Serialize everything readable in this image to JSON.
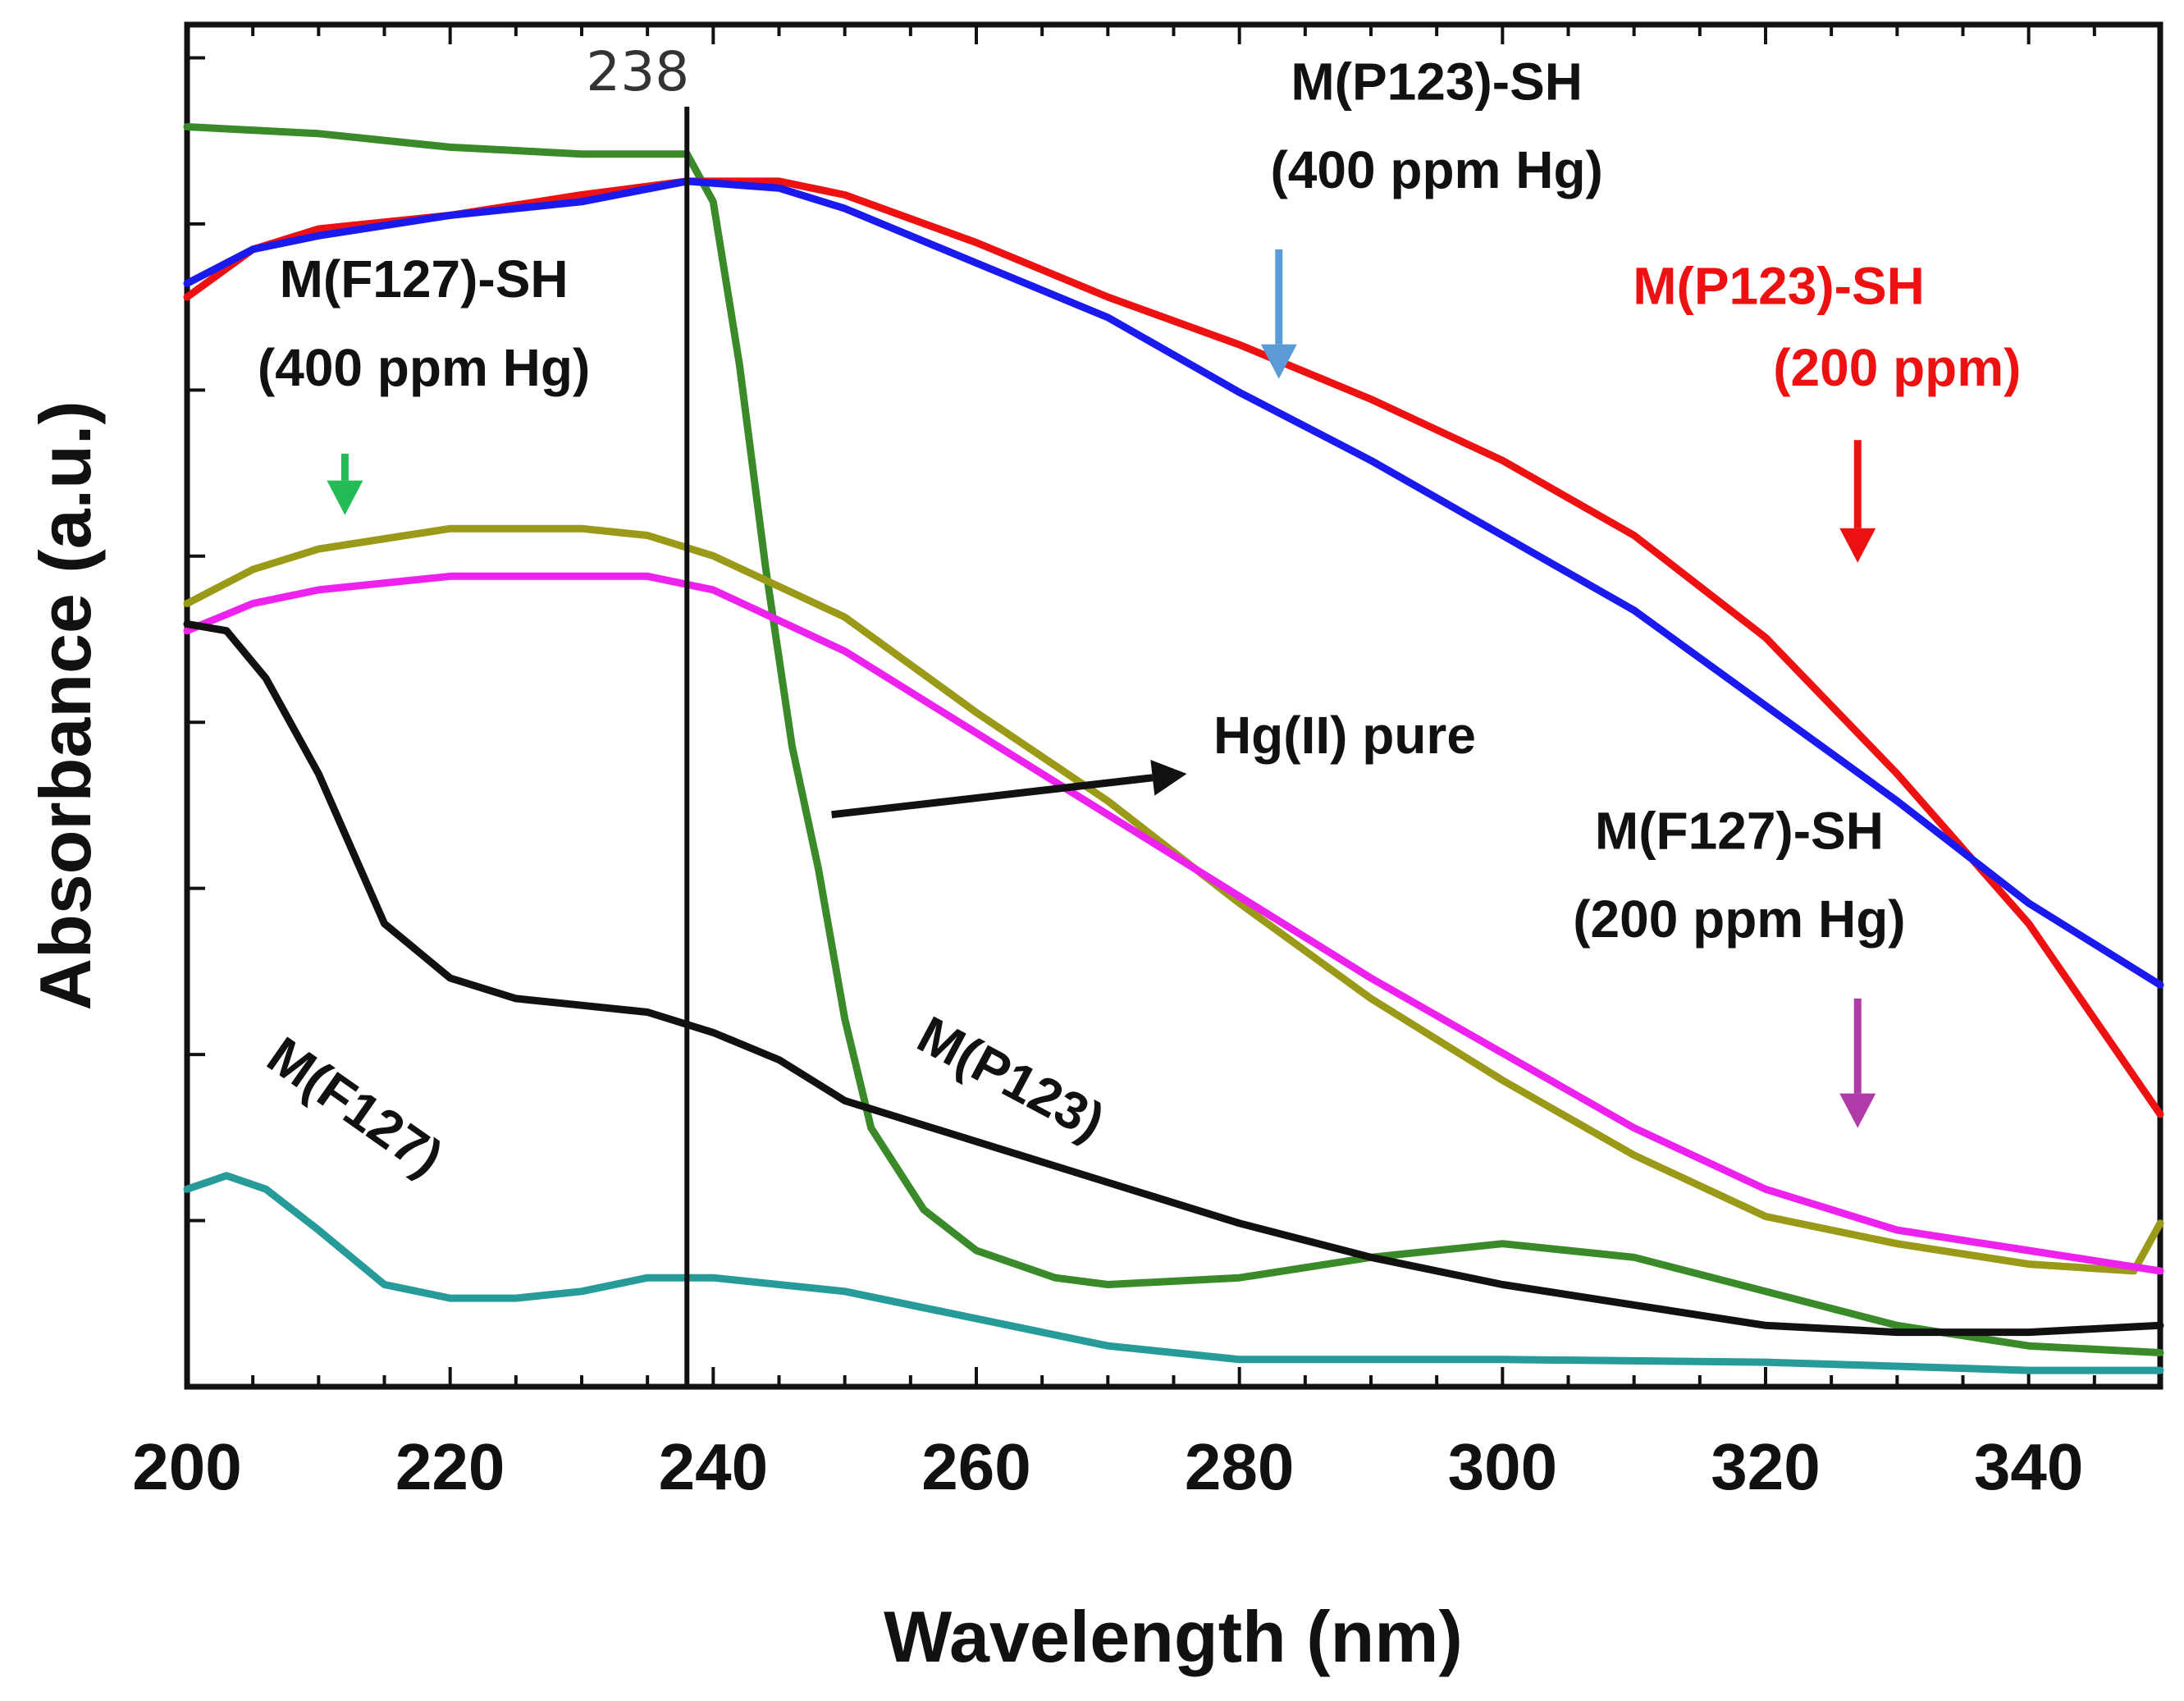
{
  "chart_data": {
    "type": "line",
    "xlabel": "Wavelength (nm)",
    "ylabel": "Absorbance (a.u.)",
    "xlim": [
      200,
      350
    ],
    "ylim": [
      0,
      1
    ],
    "xticks": [
      200,
      220,
      240,
      260,
      280,
      300,
      320,
      340
    ],
    "grid": false,
    "legend": "none",
    "peak_marker": {
      "x": 238,
      "label": "238"
    },
    "series": [
      {
        "color": "#3a8a2a",
        "points": [
          [
            200,
            0.925
          ],
          [
            210,
            0.92
          ],
          [
            220,
            0.91
          ],
          [
            230,
            0.905
          ],
          [
            238,
            0.905
          ],
          [
            240,
            0.87
          ],
          [
            242,
            0.75
          ],
          [
            244,
            0.6
          ],
          [
            246,
            0.47
          ],
          [
            248,
            0.38
          ],
          [
            250,
            0.27
          ],
          [
            252,
            0.19
          ],
          [
            256,
            0.13
          ],
          [
            260,
            0.1
          ],
          [
            266,
            0.08
          ],
          [
            270,
            0.075
          ],
          [
            280,
            0.08
          ],
          [
            290,
            0.095
          ],
          [
            300,
            0.105
          ],
          [
            310,
            0.095
          ],
          [
            320,
            0.07
          ],
          [
            330,
            0.045
          ],
          [
            340,
            0.03
          ],
          [
            350,
            0.025
          ]
        ]
      },
      {
        "color": "#ee1111",
        "points": [
          [
            200,
            0.8
          ],
          [
            205,
            0.835
          ],
          [
            210,
            0.85
          ],
          [
            220,
            0.86
          ],
          [
            230,
            0.875
          ],
          [
            238,
            0.885
          ],
          [
            245,
            0.885
          ],
          [
            250,
            0.875
          ],
          [
            260,
            0.84
          ],
          [
            270,
            0.8
          ],
          [
            280,
            0.765
          ],
          [
            290,
            0.725
          ],
          [
            300,
            0.68
          ],
          [
            310,
            0.625
          ],
          [
            320,
            0.55
          ],
          [
            330,
            0.45
          ],
          [
            340,
            0.34
          ],
          [
            350,
            0.2
          ]
        ]
      },
      {
        "color": "#1a1aee",
        "points": [
          [
            200,
            0.81
          ],
          [
            205,
            0.835
          ],
          [
            210,
            0.845
          ],
          [
            220,
            0.86
          ],
          [
            230,
            0.87
          ],
          [
            238,
            0.885
          ],
          [
            245,
            0.88
          ],
          [
            250,
            0.865
          ],
          [
            260,
            0.825
          ],
          [
            270,
            0.785
          ],
          [
            280,
            0.73
          ],
          [
            290,
            0.68
          ],
          [
            300,
            0.625
          ],
          [
            310,
            0.57
          ],
          [
            320,
            0.5
          ],
          [
            330,
            0.43
          ],
          [
            340,
            0.355
          ],
          [
            350,
            0.295
          ]
        ]
      },
      {
        "color": "#9a9a18",
        "points": [
          [
            200,
            0.575
          ],
          [
            205,
            0.6
          ],
          [
            210,
            0.615
          ],
          [
            220,
            0.63
          ],
          [
            230,
            0.63
          ],
          [
            235,
            0.625
          ],
          [
            240,
            0.61
          ],
          [
            250,
            0.565
          ],
          [
            260,
            0.495
          ],
          [
            270,
            0.43
          ],
          [
            280,
            0.355
          ],
          [
            290,
            0.285
          ],
          [
            300,
            0.225
          ],
          [
            310,
            0.17
          ],
          [
            320,
            0.125
          ],
          [
            330,
            0.105
          ],
          [
            340,
            0.09
          ],
          [
            348,
            0.085
          ],
          [
            350,
            0.12
          ]
        ]
      },
      {
        "color": "#ee22ee",
        "points": [
          [
            200,
            0.555
          ],
          [
            205,
            0.575
          ],
          [
            210,
            0.585
          ],
          [
            220,
            0.595
          ],
          [
            230,
            0.595
          ],
          [
            235,
            0.595
          ],
          [
            240,
            0.585
          ],
          [
            250,
            0.54
          ],
          [
            260,
            0.48
          ],
          [
            270,
            0.42
          ],
          [
            280,
            0.36
          ],
          [
            290,
            0.3
          ],
          [
            300,
            0.245
          ],
          [
            310,
            0.19
          ],
          [
            320,
            0.145
          ],
          [
            330,
            0.115
          ],
          [
            340,
            0.1
          ],
          [
            350,
            0.085
          ]
        ]
      },
      {
        "color": "#111111",
        "points": [
          [
            200,
            0.56
          ],
          [
            203,
            0.555
          ],
          [
            206,
            0.52
          ],
          [
            210,
            0.45
          ],
          [
            215,
            0.34
          ],
          [
            220,
            0.3
          ],
          [
            225,
            0.285
          ],
          [
            230,
            0.28
          ],
          [
            235,
            0.275
          ],
          [
            240,
            0.26
          ],
          [
            245,
            0.24
          ],
          [
            250,
            0.21
          ],
          [
            260,
            0.18
          ],
          [
            270,
            0.15
          ],
          [
            280,
            0.12
          ],
          [
            290,
            0.095
          ],
          [
            300,
            0.075
          ],
          [
            310,
            0.06
          ],
          [
            320,
            0.045
          ],
          [
            330,
            0.04
          ],
          [
            340,
            0.04
          ],
          [
            350,
            0.045
          ]
        ]
      },
      {
        "color": "#279a9a",
        "points": [
          [
            200,
            0.145
          ],
          [
            203,
            0.155
          ],
          [
            206,
            0.145
          ],
          [
            210,
            0.115
          ],
          [
            215,
            0.075
          ],
          [
            220,
            0.065
          ],
          [
            225,
            0.065
          ],
          [
            230,
            0.07
          ],
          [
            235,
            0.08
          ],
          [
            240,
            0.08
          ],
          [
            250,
            0.07
          ],
          [
            260,
            0.05
          ],
          [
            270,
            0.03
          ],
          [
            280,
            0.02
          ],
          [
            290,
            0.02
          ],
          [
            300,
            0.02
          ],
          [
            320,
            0.018
          ],
          [
            340,
            0.012
          ],
          [
            350,
            0.012
          ]
        ]
      }
    ],
    "annotations": [
      {
        "text": "M(P123)-SH",
        "color": "#111111",
        "x": 295,
        "y": 0.945
      },
      {
        "text": "(400 ppm Hg)",
        "color": "#111111",
        "x": 295,
        "y": 0.88
      },
      {
        "text": "M(F127)-SH",
        "color": "#111111",
        "x": 218,
        "y": 0.8
      },
      {
        "text": "(400 ppm Hg)",
        "color": "#111111",
        "x": 218,
        "y": 0.735
      },
      {
        "text": "M(P123)-SH",
        "color": "#ee1111",
        "x": 321,
        "y": 0.795
      },
      {
        "text": "(200 ppm)",
        "color": "#ee1111",
        "x": 330,
        "y": 0.735
      },
      {
        "text": "Hg(II) pure",
        "color": "#111111",
        "x": 288,
        "y": 0.465
      },
      {
        "text": "M(F127)-SH",
        "color": "#111111",
        "x": 318,
        "y": 0.395
      },
      {
        "text": "(200 ppm Hg)",
        "color": "#111111",
        "x": 318,
        "y": 0.33
      },
      {
        "text": "M(P123)",
        "color": "#111111",
        "x": 262,
        "y": 0.215,
        "rotate": 28
      },
      {
        "text": "M(F127)",
        "color": "#111111",
        "x": 212,
        "y": 0.195,
        "rotate": 35
      }
    ],
    "arrows": [
      {
        "color": "#5b9bd5",
        "from": [
          283,
          0.835
        ],
        "to": [
          283,
          0.74
        ]
      },
      {
        "color": "#22bb55",
        "from": [
          212,
          0.685
        ],
        "to": [
          212,
          0.64
        ]
      },
      {
        "color": "#ee1111",
        "from": [
          327,
          0.695
        ],
        "to": [
          327,
          0.605
        ]
      },
      {
        "color": "#b03aa8",
        "from": [
          327,
          0.285
        ],
        "to": [
          327,
          0.19
        ]
      },
      {
        "color": "#111111",
        "from": [
          249,
          0.42
        ],
        "to": [
          276,
          0.45
        ]
      }
    ]
  }
}
